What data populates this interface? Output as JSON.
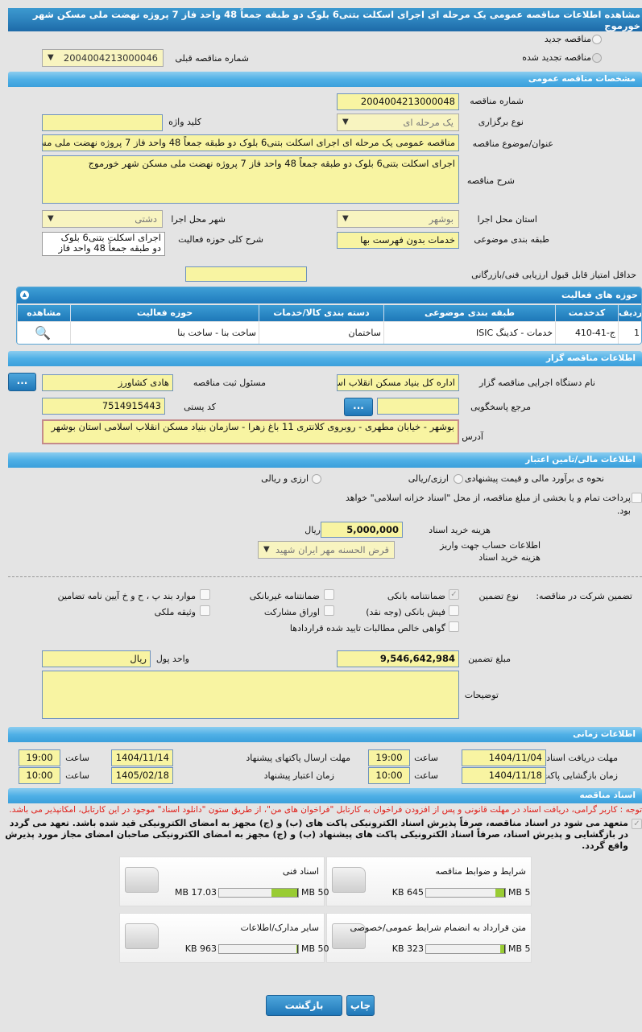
{
  "title": "مشاهده اطلاعات مناقصه عمومی یک مرحله ای اجرای اسکلت بتنی6 بلوک دو طبقه جمعاً 48 واحد فاز 7 پروژه نهضت ملی مسکن شهر خورموج",
  "tender_type": {
    "new_label": "مناقصه جدید",
    "renewed_label": "مناقصه تجدید شده",
    "prev_number_label": "شماره مناقصه قبلی",
    "prev_number": "2004004213000046"
  },
  "general": {
    "header": "مشخصات مناقصه عمومی",
    "number_label": "شماره مناقصه",
    "number": "2004004213000048",
    "holding_label": "نوع برگزاری",
    "holding": "یک مرحله ای",
    "keyword_label": "کلید واژه",
    "keyword": "",
    "subject_label": "عنوان/موضوع مناقصه",
    "subject": "مناقصه عمومی یک مرحله ای اجرای اسکلت بتنی6 بلوک دو طبقه جمعاً 48 واحد فاز 7 پروژه نهضت ملی مسکن شهر خورموج",
    "desc_label": "شرح مناقصه",
    "desc": "اجرای اسکلت بتنی6 بلوک دو طبقه جمعاً 48 واحد فاز 7 پروژه نهضت ملی مسکن شهر خورموج",
    "province_label": "استان محل اجرا",
    "province": "بوشهر",
    "city_label": "شهر محل اجرا",
    "city": "دشتی",
    "category_label": "طبقه بندی موضوعی",
    "category": "خدمات بدون فهرست بها",
    "scope_label": "شرح کلی حوزه فعالیت",
    "scope": "اجرای اسکلت بتنی6 بلوک دو طبقه جمعاً 48 واحد فاز",
    "min_score_label": "حداقل امتیاز قابل قبول ارزیابی فنی/بازرگانی",
    "min_score": ""
  },
  "activity": {
    "header": "حوزه های فعالیت",
    "columns": [
      "ردیف",
      "کدخدمت",
      "طبقه بندی موضوعی",
      "دسته بندی کالا/خدمات",
      "حوزه فعالیت",
      "مشاهده"
    ],
    "rows": [
      [
        "1",
        "ج-41-410",
        "خدمات - کدینگ ISIC",
        "ساختمان",
        "ساخت بنا - ساخت بنا"
      ]
    ]
  },
  "organizer": {
    "header": "اطلاعات مناقصه گزار",
    "org_label": "نام دستگاه اجرایی مناقصه گزار",
    "org": "اداره کل بنیاد مسکن انقلاب اسلامی",
    "resp_label": "مسئول ثبت مناقصه",
    "resp": "هادی کشاورز",
    "ref_label": "مرجع پاسخگویی",
    "ref": "",
    "postal_label": "کد پستی",
    "postal": "7514915443",
    "address_label": "آدرس",
    "address": "بوشهر - خیابان مطهری - روبروی کلانتری 11 باغ زهرا - سازمان بنیاد مسکن انقلاب اسلامی استان بوشهر",
    "more_button": "..."
  },
  "finance": {
    "header": "اطلاعات مالی/تامین اعتبار",
    "estimate_label": "نحوه ی برآورد مالی و قیمت پیشنهادی",
    "opt1": "ارزی/ریالی",
    "opt2": "ارزی و ریالی",
    "treasury_text": "پرداخت تمام و یا بخشی از مبلغ مناقصه، از محل \"اسناد خزانه اسلامی\" خواهد بود.",
    "doc_cost_label": "هزینه خرید اسناد",
    "doc_cost": "5,000,000",
    "doc_cost_unit": "ریال",
    "account_label": "اطلاعات حساب جهت واریز هزینه خرید اسناد",
    "account": "قرض الحسنه مهر ایران شهید"
  },
  "guarantee": {
    "label": "تضمین شرکت در مناقصه:",
    "type_label": "نوع تضمین",
    "options": [
      {
        "label": "ضمانتنامه بانکی",
        "checked": true
      },
      {
        "label": "ضمانتنامه غیربانکی",
        "checked": false
      },
      {
        "label": "موارد بند پ ، ح و خ آیین نامه تضامین",
        "checked": false
      },
      {
        "label": "فیش بانکی (وجه نقد)",
        "checked": false
      },
      {
        "label": "اوراق مشارکت",
        "checked": false
      },
      {
        "label": "وثیقه ملکی",
        "checked": false
      },
      {
        "label": "گواهی خالص مطالبات تایید شده قراردادها",
        "checked": false
      }
    ],
    "amount_label": "مبلغ تضمین",
    "amount": "9,546,642,984",
    "currency_label": "واحد پول",
    "currency": "ریال",
    "notes_label": "توضیحات",
    "notes": ""
  },
  "timing": {
    "header": "اطلاعات زمانی",
    "doc_receive_label": "مهلت دریافت اسناد",
    "doc_receive_date": "1404/11/04",
    "doc_receive_time": "19:00",
    "submit_label": "مهلت ارسال پاکتهای پیشنهاد",
    "submit_date": "1404/11/14",
    "submit_time": "19:00",
    "open_label": "زمان بازگشایی پاکت ها",
    "open_date": "1404/11/18",
    "open_time": "10:00",
    "validity_label": "زمان اعتبار پیشنهاد",
    "validity_date": "1405/02/18",
    "validity_time": "10:00",
    "time_label": "ساعت"
  },
  "docs": {
    "header": "اسناد مناقصه",
    "notice": "توجه : کاربر گرامی، دریافت اسناد در مهلت قانونی و پس از افزودن فراخوان به کارتابل \"فراخوان های من\"، از طریق ستون \"دانلود اسناد\" موجود در این کارتابل، امکانپذیر می باشد.",
    "commitment": "متعهد می شود در اسناد مناقصه، صرفاً پذیرش اسناد الکترونیکی پاکت های (ب) و (ج) مجهز به امضای الکترونیکی قید شده باشد. تعهد می گردد در بازگشایی و پذیرش اسناد، صرفاً اسناد الکترونیکی پاکت های پیشنهاد (ب) و (ج) مجهز به امضای الکترونیکی صاحبان امضای مجاز مورد پذیرش واقع گردد.",
    "files": [
      {
        "name": "شرایط و ضوابط مناقصه",
        "size": "645 KB",
        "max": "5 MB",
        "fill": 0.126
      },
      {
        "name": "اسناد فنی",
        "size": "17.03 MB",
        "max": "50 MB",
        "fill": 0.34
      },
      {
        "name": "متن قرارداد به انضمام شرایط عمومی/خصوصی",
        "size": "323 KB",
        "max": "5 MB",
        "fill": 0.063
      },
      {
        "name": "سایر مدارک/اطلاعات",
        "size": "963 KB",
        "max": "50 MB",
        "fill": 0.019
      }
    ]
  },
  "actions": {
    "back": "بازگشت",
    "print": "چاپ"
  },
  "colors": {
    "header_blue": "#2f86c0",
    "input_yellow": "#f8f4a2",
    "notice_red": "#e0201a",
    "progress_green": "#99cc33"
  }
}
